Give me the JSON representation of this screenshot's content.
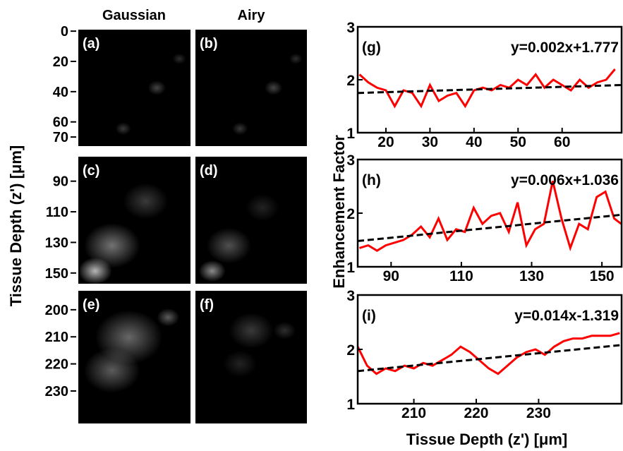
{
  "image_panel": {
    "columns": [
      "Gaussian",
      "Airy"
    ],
    "ylabel": "Tissue Depth (z') [μm]",
    "panel_labels": [
      [
        "(a)",
        "(b)"
      ],
      [
        "(c)",
        "(d)"
      ],
      [
        "(e)",
        "(f)"
      ]
    ],
    "rows": [
      {
        "ylim": [
          -1,
          76
        ],
        "yticks": [
          0,
          20,
          40,
          60,
          70
        ]
      },
      {
        "ylim": [
          74,
          157
        ],
        "yticks": [
          90,
          110,
          130,
          150
        ]
      },
      {
        "ylim": [
          193,
          242
        ],
        "yticks": [
          200,
          210,
          220,
          230
        ]
      }
    ]
  },
  "chart_labels": {
    "x": "Tissue Depth (z') [μm]",
    "y": "Enhancement Factor"
  },
  "chart_data": [
    {
      "type": "line",
      "label": "(g)",
      "annotation": "y=0.002x+1.777",
      "xlim": [
        13.6,
        73.5
      ],
      "xticks": [
        20,
        30,
        40,
        50,
        60
      ],
      "ylim": [
        1,
        3
      ],
      "yticks": [
        1,
        2,
        3
      ],
      "series": [
        {
          "color": "#ff0000",
          "x": [
            14,
            16,
            18,
            20,
            22,
            24,
            26,
            28,
            30,
            32,
            34,
            36,
            38,
            40,
            42,
            44,
            46,
            48,
            50,
            52,
            54,
            56,
            58,
            60,
            62,
            64,
            66,
            68,
            70,
            72
          ],
          "values": [
            2.1,
            1.95,
            1.85,
            1.8,
            1.5,
            1.8,
            1.75,
            1.5,
            1.9,
            1.6,
            1.7,
            1.75,
            1.5,
            1.8,
            1.85,
            1.8,
            1.9,
            1.85,
            2.0,
            1.9,
            2.1,
            1.85,
            2.0,
            1.9,
            1.8,
            2.0,
            1.85,
            1.95,
            2.0,
            2.2
          ]
        },
        {
          "color": "#000000",
          "dash": true,
          "x": [
            13.6,
            73.5
          ],
          "values": [
            1.75,
            1.9
          ]
        }
      ]
    },
    {
      "type": "line",
      "label": "(h)",
      "annotation": "y=0.006x+1.036",
      "xlim": [
        80.5,
        155.6
      ],
      "xticks": [
        90,
        110,
        130,
        150
      ],
      "ylim": [
        1,
        3
      ],
      "yticks": [
        1,
        2,
        3
      ],
      "series": [
        {
          "color": "#ff0000",
          "x": [
            81,
            83.5,
            86,
            88.5,
            91,
            93.5,
            96,
            98.5,
            101,
            103.5,
            106,
            108.5,
            111,
            113.5,
            116,
            118.5,
            121,
            123.5,
            126,
            128.5,
            131,
            133.5,
            136,
            138.5,
            141,
            143.5,
            146,
            148.5,
            151,
            153.5,
            155.5
          ],
          "values": [
            1.35,
            1.4,
            1.3,
            1.4,
            1.45,
            1.5,
            1.6,
            1.75,
            1.55,
            1.9,
            1.5,
            1.7,
            1.65,
            2.1,
            1.8,
            1.95,
            2.0,
            1.65,
            2.2,
            1.4,
            1.7,
            1.8,
            2.6,
            1.9,
            1.35,
            1.8,
            1.7,
            2.3,
            2.4,
            1.9,
            1.8
          ]
        },
        {
          "color": "#000000",
          "dash": true,
          "x": [
            80.5,
            155.6
          ],
          "values": [
            1.48,
            1.97
          ]
        }
      ]
    },
    {
      "type": "line",
      "label": "(i)",
      "annotation": "y=0.014x-1.319",
      "xlim": [
        201,
        243.3
      ],
      "xticks": [
        210,
        220,
        230
      ],
      "ylim": [
        1,
        3
      ],
      "yticks": [
        1,
        2,
        3
      ],
      "series": [
        {
          "color": "#ff0000",
          "x": [
            201,
            202.5,
            204,
            205.5,
            207,
            208.5,
            210,
            211.5,
            213,
            214.5,
            216,
            217.5,
            219,
            220.5,
            222,
            223.5,
            225,
            226.5,
            228,
            229.5,
            231,
            232.5,
            234,
            235.5,
            237,
            238.5,
            240,
            241.5,
            243
          ],
          "values": [
            2.05,
            1.7,
            1.55,
            1.65,
            1.6,
            1.7,
            1.65,
            1.75,
            1.7,
            1.8,
            1.9,
            2.05,
            1.95,
            1.8,
            1.65,
            1.55,
            1.7,
            1.85,
            1.95,
            2.0,
            1.9,
            2.05,
            2.15,
            2.2,
            2.2,
            2.25,
            2.25,
            2.25,
            2.3
          ]
        },
        {
          "color": "#000000",
          "dash": true,
          "x": [
            201,
            243.3
          ],
          "values": [
            1.6,
            2.08
          ]
        }
      ]
    }
  ]
}
